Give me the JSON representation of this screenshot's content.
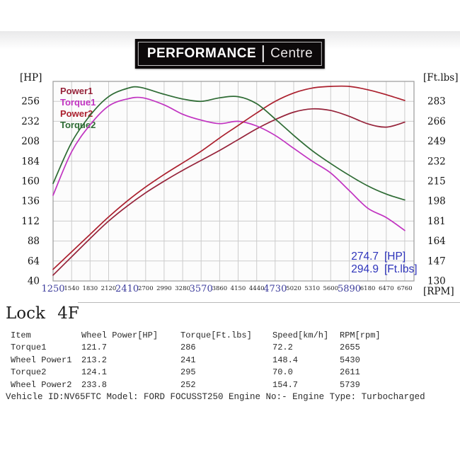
{
  "logo": {
    "primary": "PERFORMANCE",
    "secondary": "Centre"
  },
  "chart_data": {
    "type": "line",
    "grid": true,
    "legend_position": "top-left",
    "x_axis": {
      "label": "[RPM]",
      "range": [
        1250,
        6905
      ],
      "ticks": [
        1250,
        1540,
        1830,
        2120,
        2410,
        2700,
        2990,
        3280,
        3570,
        3860,
        4150,
        4440,
        4730,
        5020,
        5310,
        5600,
        5890,
        6180,
        6470,
        6760
      ],
      "major_ticks": [
        1250,
        2410,
        3570,
        4730,
        5890
      ]
    },
    "y_left": {
      "label": "[HP]",
      "range": [
        40,
        280
      ],
      "ticks": [
        40,
        64,
        88,
        112,
        136,
        160,
        184,
        208,
        232,
        256
      ]
    },
    "y_right": {
      "label": "[Ft.lbs]",
      "range": [
        130,
        300
      ],
      "ticks": [
        130,
        147,
        164,
        181,
        198,
        215,
        232,
        249,
        266,
        283
      ]
    },
    "annotation": {
      "lines": [
        {
          "value": "274.7",
          "unit": "[HP]"
        },
        {
          "value": "294.9",
          "unit": "[Ft.lbs]"
        }
      ]
    },
    "series": [
      {
        "name": "Power1",
        "axis": "left",
        "color": "#96233a",
        "points": [
          [
            1250,
            47
          ],
          [
            1540,
            69
          ],
          [
            1830,
            91
          ],
          [
            2120,
            112
          ],
          [
            2410,
            130
          ],
          [
            2700,
            146
          ],
          [
            2990,
            160
          ],
          [
            3280,
            173
          ],
          [
            3570,
            185
          ],
          [
            3860,
            197
          ],
          [
            4150,
            210
          ],
          [
            4440,
            223
          ],
          [
            4730,
            234
          ],
          [
            5020,
            243
          ],
          [
            5310,
            247
          ],
          [
            5600,
            245
          ],
          [
            5890,
            238
          ],
          [
            6180,
            229
          ],
          [
            6470,
            225
          ],
          [
            6760,
            231
          ]
        ]
      },
      {
        "name": "Torque1",
        "axis": "right",
        "color": "#c133c1",
        "points": [
          [
            1250,
            203
          ],
          [
            1540,
            240
          ],
          [
            1830,
            263
          ],
          [
            2120,
            279
          ],
          [
            2410,
            285
          ],
          [
            2655,
            286
          ],
          [
            2990,
            280
          ],
          [
            3280,
            272
          ],
          [
            3570,
            267
          ],
          [
            3860,
            264
          ],
          [
            4150,
            266
          ],
          [
            4440,
            262
          ],
          [
            4730,
            254
          ],
          [
            5020,
            243
          ],
          [
            5310,
            232
          ],
          [
            5600,
            222
          ],
          [
            5890,
            207
          ],
          [
            6180,
            192
          ],
          [
            6470,
            184
          ],
          [
            6760,
            173
          ]
        ]
      },
      {
        "name": "Power2",
        "axis": "left",
        "color": "#ab1f2d",
        "points": [
          [
            1250,
            54
          ],
          [
            1540,
            75
          ],
          [
            1830,
            96
          ],
          [
            2120,
            117
          ],
          [
            2410,
            136
          ],
          [
            2700,
            153
          ],
          [
            2990,
            168
          ],
          [
            3280,
            182
          ],
          [
            3570,
            196
          ],
          [
            3860,
            212
          ],
          [
            4150,
            227
          ],
          [
            4440,
            242
          ],
          [
            4730,
            256
          ],
          [
            5020,
            266
          ],
          [
            5310,
            272
          ],
          [
            5600,
            274
          ],
          [
            5890,
            274
          ],
          [
            6180,
            270
          ],
          [
            6470,
            264
          ],
          [
            6760,
            257
          ]
        ]
      },
      {
        "name": "Torque2",
        "axis": "right",
        "color": "#2e6b34",
        "points": [
          [
            1250,
            213
          ],
          [
            1540,
            248
          ],
          [
            1830,
            271
          ],
          [
            2120,
            287
          ],
          [
            2410,
            294
          ],
          [
            2611,
            295
          ],
          [
            2990,
            289
          ],
          [
            3280,
            285
          ],
          [
            3570,
            283
          ],
          [
            3860,
            286
          ],
          [
            4150,
            287
          ],
          [
            4440,
            281
          ],
          [
            4730,
            268
          ],
          [
            5020,
            254
          ],
          [
            5310,
            241
          ],
          [
            5600,
            230
          ],
          [
            5890,
            220
          ],
          [
            6180,
            211
          ],
          [
            6470,
            204
          ],
          [
            6760,
            199
          ]
        ]
      }
    ],
    "colors": {
      "grid": "#cccccc",
      "border": "#9a9a9a",
      "plot_bg": "#fcfcfc",
      "tick_major": "#3c3c9c",
      "tick_minor": "#222222",
      "axis_text": "#111111",
      "annotation": "#2e34bb"
    }
  },
  "section_title": "Lock 4F",
  "table": {
    "headers": [
      "Item",
      "Wheel Power[HP]",
      "Torque[Ft.lbs]",
      "Speed[km/h]",
      "RPM[rpm]"
    ],
    "rows": [
      [
        "Torque1",
        "121.7",
        "286",
        "72.2",
        "2655"
      ],
      [
        "Wheel Power1",
        "213.2",
        "241",
        "148.4",
        "5430"
      ],
      [
        "Torque2",
        "124.1",
        "295",
        "70.0",
        "2611"
      ],
      [
        "Wheel Power2",
        "233.8",
        "252",
        "154.7",
        "5739"
      ]
    ]
  },
  "footer": "Vehicle ID:NV65FTC Model: FORD FOCUSST250 Engine No:- Engine Type: Turbocharged"
}
